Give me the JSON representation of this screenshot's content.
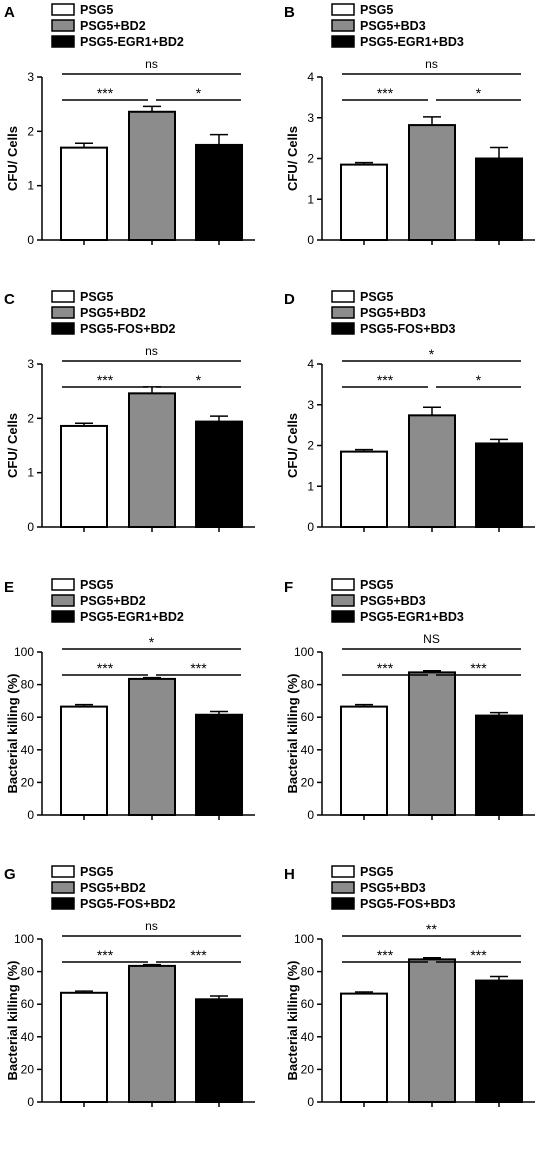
{
  "chart_data": [
    {
      "panel_label": "A",
      "type": "bar",
      "legend": [
        "PSG5",
        "PSG5+BD2",
        "PSG5-EGR1+BD2"
      ],
      "categories": [
        "PSG5",
        "PSG5+BD2",
        "PSG5-EGR1+BD2"
      ],
      "values": [
        1.7,
        2.36,
        1.75
      ],
      "errors": [
        0.08,
        0.1,
        0.19
      ],
      "ylabel": "CFU/ Cells",
      "ylim": [
        0,
        3
      ],
      "yticks": [
        "0",
        "1",
        "2",
        "3"
      ],
      "significance": [
        {
          "from": 0,
          "to": 1,
          "label": "***"
        },
        {
          "from": 1,
          "to": 2,
          "label": "*"
        },
        {
          "from": 0,
          "to": 2,
          "label": "ns"
        }
      ]
    },
    {
      "panel_label": "B",
      "type": "bar",
      "legend": [
        "PSG5",
        "PSG5+BD3",
        "PSG5-EGR1+BD3"
      ],
      "categories": [
        "PSG5",
        "PSG5+BD3",
        "PSG5-EGR1+BD3"
      ],
      "values": [
        1.85,
        2.82,
        2.0
      ],
      "errors": [
        0.05,
        0.2,
        0.27
      ],
      "ylabel": "CFU/ Cells",
      "ylim": [
        0,
        4
      ],
      "yticks": [
        "0",
        "1",
        "2",
        "3",
        "4"
      ],
      "significance": [
        {
          "from": 0,
          "to": 1,
          "label": "***"
        },
        {
          "from": 1,
          "to": 2,
          "label": "*"
        },
        {
          "from": 0,
          "to": 2,
          "label": "ns"
        }
      ]
    },
    {
      "panel_label": "C",
      "type": "bar",
      "legend": [
        "PSG5",
        "PSG5+BD2",
        "PSG5-FOS+BD2"
      ],
      "categories": [
        "PSG5",
        "PSG5+BD2",
        "PSG5-FOS+BD2"
      ],
      "values": [
        1.86,
        2.46,
        1.94
      ],
      "errors": [
        0.05,
        0.12,
        0.1
      ],
      "ylabel": "CFU/ Cells",
      "ylim": [
        0,
        3
      ],
      "yticks": [
        "0",
        "1",
        "2",
        "3"
      ],
      "significance": [
        {
          "from": 0,
          "to": 1,
          "label": "***"
        },
        {
          "from": 1,
          "to": 2,
          "label": "*"
        },
        {
          "from": 0,
          "to": 2,
          "label": "ns"
        }
      ]
    },
    {
      "panel_label": "D",
      "type": "bar",
      "legend": [
        "PSG5",
        "PSG5+BD3",
        "PSG5-FOS+BD3"
      ],
      "categories": [
        "PSG5",
        "PSG5+BD3",
        "PSG5-FOS+BD3"
      ],
      "values": [
        1.85,
        2.74,
        2.05
      ],
      "errors": [
        0.05,
        0.2,
        0.1
      ],
      "ylabel": "CFU/ Cells",
      "ylim": [
        0,
        4
      ],
      "yticks": [
        "0",
        "1",
        "2",
        "3",
        "4"
      ],
      "significance": [
        {
          "from": 0,
          "to": 1,
          "label": "***"
        },
        {
          "from": 1,
          "to": 2,
          "label": "*"
        },
        {
          "from": 0,
          "to": 2,
          "label": "*"
        }
      ]
    },
    {
      "panel_label": "E",
      "type": "bar",
      "legend": [
        "PSG5",
        "PSG5+BD2",
        "PSG5-EGR1+BD2"
      ],
      "categories": [
        "PSG5",
        "PSG5+BD2",
        "PSG5-EGR1+BD2"
      ],
      "values": [
        66.5,
        83.5,
        61.5
      ],
      "errors": [
        1.2,
        0.8,
        2.0
      ],
      "ylabel": "Bacterial killing (%)",
      "ylim": [
        0,
        100
      ],
      "yticks": [
        "0",
        "20",
        "40",
        "60",
        "80",
        "100"
      ],
      "significance": [
        {
          "from": 0,
          "to": 1,
          "label": "***"
        },
        {
          "from": 1,
          "to": 2,
          "label": "***"
        },
        {
          "from": 0,
          "to": 2,
          "label": "*"
        }
      ]
    },
    {
      "panel_label": "F",
      "type": "bar",
      "legend": [
        "PSG5",
        "PSG5+BD3",
        "PSG5-EGR1+BD3"
      ],
      "categories": [
        "PSG5",
        "PSG5+BD3",
        "PSG5-EGR1+BD3"
      ],
      "values": [
        66.5,
        87.5,
        61.0
      ],
      "errors": [
        1.2,
        1.0,
        1.8
      ],
      "ylabel": "Bacterial killing (%)",
      "ylim": [
        0,
        100
      ],
      "yticks": [
        "0",
        "20",
        "40",
        "60",
        "80",
        "100"
      ],
      "significance": [
        {
          "from": 0,
          "to": 1,
          "label": "***"
        },
        {
          "from": 1,
          "to": 2,
          "label": "***"
        },
        {
          "from": 0,
          "to": 2,
          "label": "NS"
        }
      ]
    },
    {
      "panel_label": "G",
      "type": "bar",
      "legend": [
        "PSG5",
        "PSG5+BD2",
        "PSG5-FOS+BD2"
      ],
      "categories": [
        "PSG5",
        "PSG5+BD2",
        "PSG5-FOS+BD2"
      ],
      "values": [
        67.0,
        83.5,
        63.0
      ],
      "errors": [
        1.0,
        0.8,
        2.0
      ],
      "ylabel": "Bacterial killing (%)",
      "ylim": [
        0,
        100
      ],
      "yticks": [
        "0",
        "20",
        "40",
        "60",
        "80",
        "100"
      ],
      "significance": [
        {
          "from": 0,
          "to": 1,
          "label": "***"
        },
        {
          "from": 1,
          "to": 2,
          "label": "***"
        },
        {
          "from": 0,
          "to": 2,
          "label": "ns"
        }
      ]
    },
    {
      "panel_label": "H",
      "type": "bar",
      "legend": [
        "PSG5",
        "PSG5+BD3",
        "PSG5-FOS+BD3"
      ],
      "categories": [
        "PSG5",
        "PSG5+BD3",
        "PSG5-FOS+BD3"
      ],
      "values": [
        66.5,
        87.5,
        74.5
      ],
      "errors": [
        1.0,
        1.0,
        2.5
      ],
      "ylabel": "Bacterial killing (%)",
      "ylim": [
        0,
        100
      ],
      "yticks": [
        "0",
        "20",
        "40",
        "60",
        "80",
        "100"
      ],
      "significance": [
        {
          "from": 0,
          "to": 1,
          "label": "***"
        },
        {
          "from": 1,
          "to": 2,
          "label": "***"
        },
        {
          "from": 0,
          "to": 2,
          "label": "**"
        }
      ]
    }
  ],
  "colors": {
    "bar_fills": [
      "#ffffff",
      "#8c8c8c",
      "#000000"
    ],
    "stroke": "#000000"
  }
}
